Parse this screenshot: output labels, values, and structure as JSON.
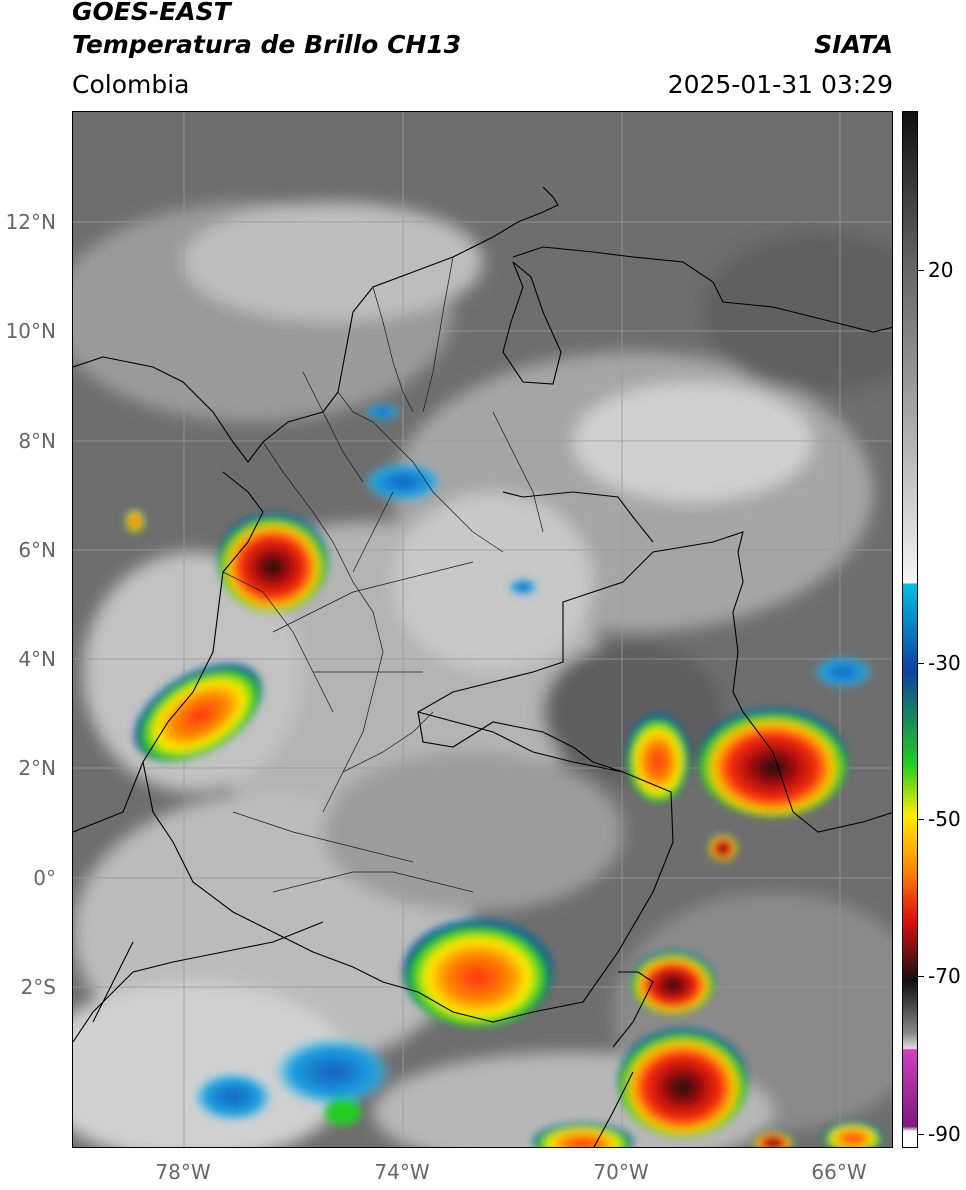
{
  "header": {
    "satellite": "GOES-EAST",
    "product": "Temperatura de Brillo CH13",
    "region": "Colombia",
    "source": "SIATA",
    "datetime": "2025-01-31 03:29"
  },
  "axes": {
    "lat_labels": [
      "12°N",
      "10°N",
      "8°N",
      "6°N",
      "4°N",
      "2°N",
      "0°",
      "2°S"
    ],
    "lon_labels": [
      "78°W",
      "74°W",
      "70°W",
      "66°W"
    ]
  },
  "colorbar": {
    "labels": [
      "20",
      "-30",
      "-50",
      "-70",
      "-90"
    ],
    "colors": {
      "cold_black": "#111111",
      "cold_red": "#e01010",
      "orange": "#ff8c00",
      "yellow": "#ffee00",
      "green": "#22cc22",
      "blue": "#1040a0",
      "cyan": "#00c0e0",
      "magenta": "#d040c0",
      "purple": "#801880"
    }
  }
}
